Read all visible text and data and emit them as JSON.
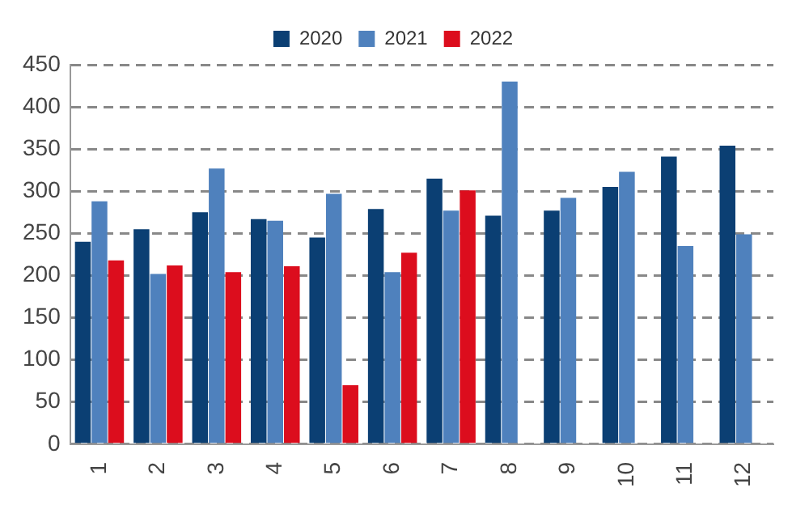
{
  "chart_data": {
    "type": "bar",
    "categories": [
      "1",
      "2",
      "3",
      "4",
      "5",
      "6",
      "7",
      "8",
      "9",
      "10",
      "11",
      "12"
    ],
    "series": [
      {
        "name": "2020",
        "color": "#0b3f73",
        "values": [
          240,
          255,
          275,
          267,
          245,
          279,
          315,
          271,
          277,
          305,
          341,
          354
        ]
      },
      {
        "name": "2021",
        "color": "#4f81bd",
        "values": [
          288,
          202,
          327,
          265,
          297,
          204,
          277,
          430,
          292,
          323,
          235,
          249
        ]
      },
      {
        "name": "2022",
        "color": "#dc0d1d",
        "values": [
          218,
          212,
          204,
          211,
          70,
          227,
          301,
          null,
          null,
          null,
          null,
          null
        ]
      }
    ],
    "ylim": [
      0,
      450
    ],
    "yticks": [
      0,
      50,
      100,
      150,
      200,
      250,
      300,
      350,
      400,
      450
    ],
    "grid": "y",
    "legend": "top"
  }
}
